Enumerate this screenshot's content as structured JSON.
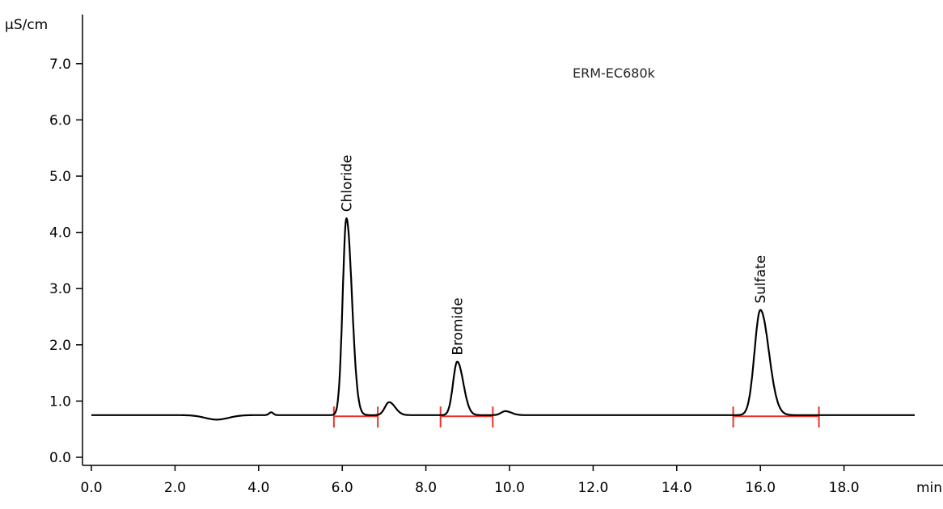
{
  "chart_data": {
    "type": "line",
    "title": "ERM-EC680k",
    "xlabel": "min",
    "ylabel": "µS/cm",
    "xlim": [
      0,
      19.7
    ],
    "ylim": [
      0,
      8.0
    ],
    "x_ticks": [
      "0.0",
      "2.0",
      "4.0",
      "6.0",
      "8.0",
      "10.0",
      "12.0",
      "14.0",
      "16.0",
      "18.0"
    ],
    "y_ticks": [
      "0.0",
      "1.0",
      "2.0",
      "3.0",
      "4.0",
      "5.0",
      "6.0",
      "7.0"
    ],
    "baseline": 0.75,
    "series": [
      {
        "peaks": [
          {
            "label": "Chloride",
            "x": 6.1,
            "y": 4.25
          },
          {
            "label": "",
            "x": 7.12,
            "y": 0.98
          },
          {
            "label": "Bromide",
            "x": 8.75,
            "y": 1.7
          },
          {
            "label": "",
            "x": 9.9,
            "y": 0.82
          },
          {
            "label": "Sulfate",
            "x": 16.0,
            "y": 2.62
          }
        ],
        "features": [
          {
            "x": 3.0,
            "dip_y": 0.67
          },
          {
            "x": 4.3,
            "bump_y": 0.8
          }
        ]
      }
    ],
    "integration_windows": [
      {
        "start": 5.8,
        "end": 6.85,
        "y": 0.73,
        "color": "#e8332a"
      },
      {
        "start": 8.35,
        "end": 9.6,
        "y": 0.73,
        "color": "#e8332a"
      },
      {
        "start": 15.35,
        "end": 17.4,
        "y": 0.73,
        "color": "#e8332a"
      }
    ],
    "colors": {
      "trace": "#000000",
      "integration": "#e8332a"
    }
  }
}
